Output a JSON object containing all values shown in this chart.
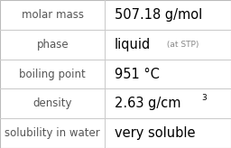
{
  "rows": [
    {
      "label": "molar mass",
      "value": "507.18 g/mol",
      "extra": null,
      "superscript": null
    },
    {
      "label": "phase",
      "value": "liquid",
      "extra": " (at STP)",
      "superscript": null
    },
    {
      "label": "boiling point",
      "value": "951 °C",
      "extra": null,
      "superscript": null
    },
    {
      "label": "density",
      "value": "2.63 g/cm",
      "extra": null,
      "superscript": "3"
    },
    {
      "label": "solubility in water",
      "value": "very soluble",
      "extra": null,
      "superscript": null
    }
  ],
  "background_color": "#ffffff",
  "border_color": "#bbbbbb",
  "divider_color": "#cccccc",
  "label_color": "#555555",
  "value_color": "#000000",
  "extra_color": "#888888",
  "label_fontsize": 8.5,
  "value_fontsize": 10.5,
  "extra_fontsize": 6.5,
  "super_fontsize": 6.5,
  "col_split": 0.455,
  "figsize": [
    2.56,
    1.64
  ],
  "dpi": 100
}
